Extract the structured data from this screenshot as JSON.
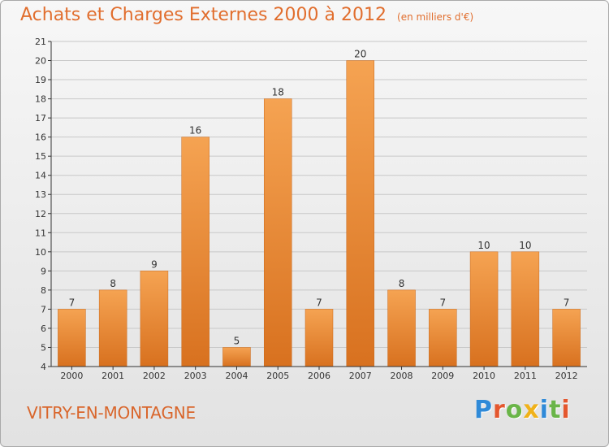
{
  "header": {
    "title": "Achats et Charges Externes 2000 à 2012",
    "unit": "(en milliers d'€)"
  },
  "footer": {
    "commune": "VITRY-EN-MONTAGNE",
    "brand": "Proxiti"
  },
  "colors": {
    "accent": "#e16e2e",
    "bar_top": "#f5a352",
    "bar_bottom": "#d8711f",
    "grid": "#c8c8c8",
    "axis": "#333333",
    "brand_letters": [
      "#2f8ad8",
      "#e4572e",
      "#6ab548",
      "#f0b21a",
      "#2f8ad8",
      "#6ab548",
      "#e4572e"
    ]
  },
  "chart_data": {
    "type": "bar",
    "title": "Achats et Charges Externes 2000 à 2012",
    "subtitle": "(en milliers d'€)",
    "categories": [
      "2000",
      "2001",
      "2002",
      "2003",
      "2004",
      "2005",
      "2006",
      "2007",
      "2008",
      "2009",
      "2010",
      "2011",
      "2012"
    ],
    "values": [
      7,
      8,
      9,
      16,
      5,
      18,
      7,
      20,
      8,
      7,
      10,
      10,
      7
    ],
    "ylim": [
      4,
      21
    ],
    "yticks": [
      4,
      5,
      6,
      7,
      8,
      9,
      10,
      11,
      12,
      13,
      14,
      15,
      16,
      17,
      18,
      19,
      20,
      21
    ],
    "grid": true,
    "data_labels": true
  }
}
